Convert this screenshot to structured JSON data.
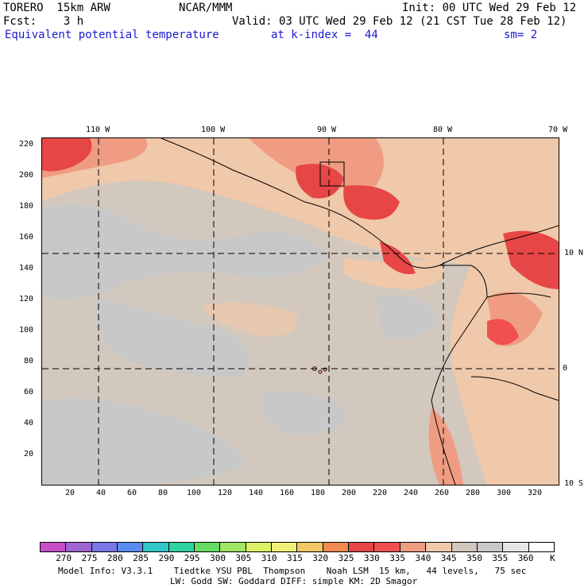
{
  "header": {
    "model": "TORERO  15km ARW",
    "center": "NCAR/MMM",
    "init": "Init: 00 UTC Wed 29 Feb 12",
    "fcst": "Fcst:    3 h",
    "valid": "Valid: 03 UTC Wed 29 Feb 12 (21 CST Tue 28 Feb 12)",
    "field": "Equivalent potential temperature",
    "kindex": "at k-index =  44",
    "smooth": "sm= 2"
  },
  "map": {
    "top_lon_labels": [
      "110 W",
      "100 W",
      "90 W",
      "80 W",
      "70 W"
    ],
    "right_lat_labels": [
      "10 N",
      "0",
      "10 S"
    ],
    "y_grid_labels": [
      "220",
      "200",
      "180",
      "160",
      "140",
      "120",
      "100",
      "80",
      "60",
      "40",
      "20"
    ],
    "x_grid_labels": [
      "20",
      "40",
      "60",
      "80",
      "100",
      "120",
      "140",
      "160",
      "180",
      "200",
      "220",
      "240",
      "260",
      "280",
      "300",
      "320"
    ]
  },
  "colorbar": {
    "labels": [
      "270",
      "275",
      "280",
      "285",
      "290",
      "295",
      "300",
      "305",
      "310",
      "315",
      "320",
      "325",
      "330",
      "335",
      "340",
      "345",
      "350",
      "355",
      "360",
      "K"
    ],
    "colors": [
      "#c84fc8",
      "#a064d2",
      "#7878e6",
      "#5a8cf0",
      "#32c8c8",
      "#32d2a0",
      "#64dc64",
      "#a0e664",
      "#dcf064",
      "#f0f078",
      "#f0c864",
      "#f08c50",
      "#e64646",
      "#f05050",
      "#f09c82",
      "#f0c8aa",
      "#d2c8be",
      "#c8c8c8",
      "#e6e6e6",
      "#ffffff"
    ]
  },
  "footer": {
    "line1": "Model Info: V3.3.1    Tiedtke YSU PBL  Thompson    Noah LSM  15 km,   44 levels,   75 sec",
    "line2": "LW: Godd SW: Goddard DIFF: simple KM: 2D Smagor"
  }
}
